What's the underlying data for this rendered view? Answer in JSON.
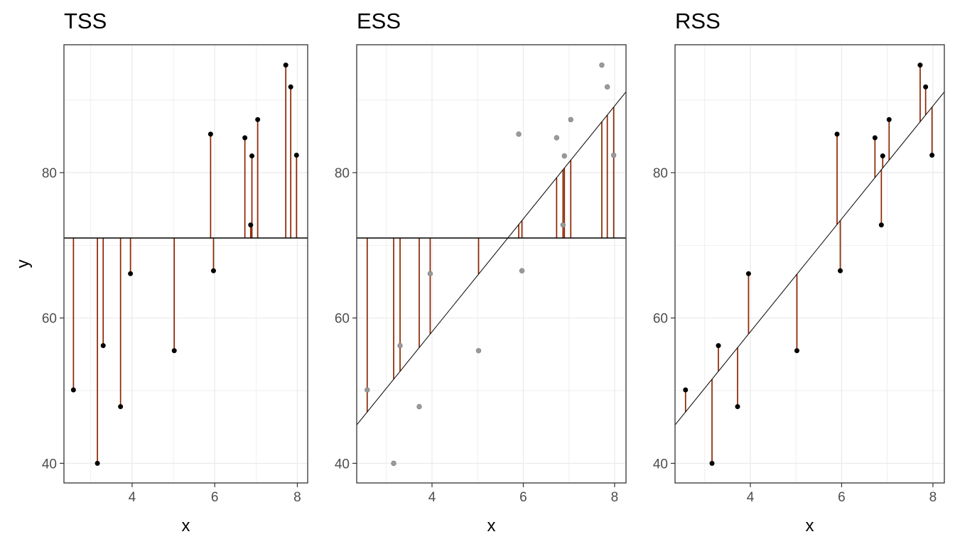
{
  "chart_data": [
    {
      "type": "scatter",
      "title": "TSS",
      "xlabel": "x",
      "ylabel": "y",
      "xlim": [
        2.35,
        8.25
      ],
      "ylim": [
        37.3,
        97.6
      ],
      "xticks": [
        4,
        6,
        8
      ],
      "yticks": [
        40,
        60,
        80
      ],
      "grid": true,
      "hline": 71.0,
      "segments": "point-to-mean",
      "point_style": "dark"
    },
    {
      "type": "scatter",
      "title": "ESS",
      "xlabel": "x",
      "ylabel": "",
      "xlim": [
        2.35,
        8.25
      ],
      "ylim": [
        37.3,
        97.6
      ],
      "xticks": [
        4,
        6,
        8
      ],
      "yticks": [
        40,
        60,
        80
      ],
      "grid": true,
      "hline": 71.0,
      "regression_line": {
        "intercept": 27.02,
        "slope": 7.77
      },
      "segments": "fitted-to-mean",
      "point_style": "faded"
    },
    {
      "type": "scatter",
      "title": "RSS",
      "xlabel": "x",
      "ylabel": "",
      "xlim": [
        2.35,
        8.25
      ],
      "ylim": [
        37.3,
        97.6
      ],
      "xticks": [
        4,
        6,
        8
      ],
      "yticks": [
        40,
        60,
        80
      ],
      "grid": true,
      "regression_line": {
        "intercept": 27.02,
        "slope": 7.77
      },
      "segments": "point-to-fitted",
      "point_style": "dark"
    }
  ],
  "points": [
    {
      "x": 2.58,
      "y": 50.1
    },
    {
      "x": 3.16,
      "y": 40.0
    },
    {
      "x": 3.3,
      "y": 56.2
    },
    {
      "x": 3.72,
      "y": 47.8
    },
    {
      "x": 3.96,
      "y": 66.1
    },
    {
      "x": 5.02,
      "y": 55.5
    },
    {
      "x": 5.9,
      "y": 85.3
    },
    {
      "x": 5.97,
      "y": 66.5
    },
    {
      "x": 6.73,
      "y": 84.8
    },
    {
      "x": 6.87,
      "y": 72.8
    },
    {
      "x": 6.9,
      "y": 82.3
    },
    {
      "x": 7.04,
      "y": 87.3
    },
    {
      "x": 7.72,
      "y": 94.8
    },
    {
      "x": 7.84,
      "y": 91.8
    },
    {
      "x": 7.98,
      "y": 82.4
    }
  ],
  "colors": {
    "segment": "#8B2500",
    "point_dark": "#000000",
    "point_faded": "#9a9a9a",
    "grid": "#ebebeb",
    "axis_text": "#4d4d4d"
  }
}
